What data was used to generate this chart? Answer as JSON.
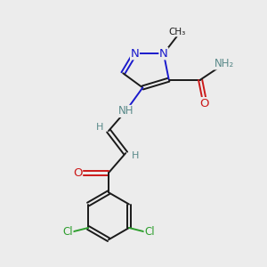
{
  "bg_color": "#ececec",
  "bond_color": "#1a1a1a",
  "N_color": "#1a1acc",
  "O_color": "#cc1a1a",
  "Cl_color": "#2e9e2e",
  "H_color": "#5a8a8a",
  "figsize": [
    3.0,
    3.0
  ],
  "dpi": 100,
  "xlim": [
    0,
    10
  ],
  "ylim": [
    0,
    10
  ]
}
